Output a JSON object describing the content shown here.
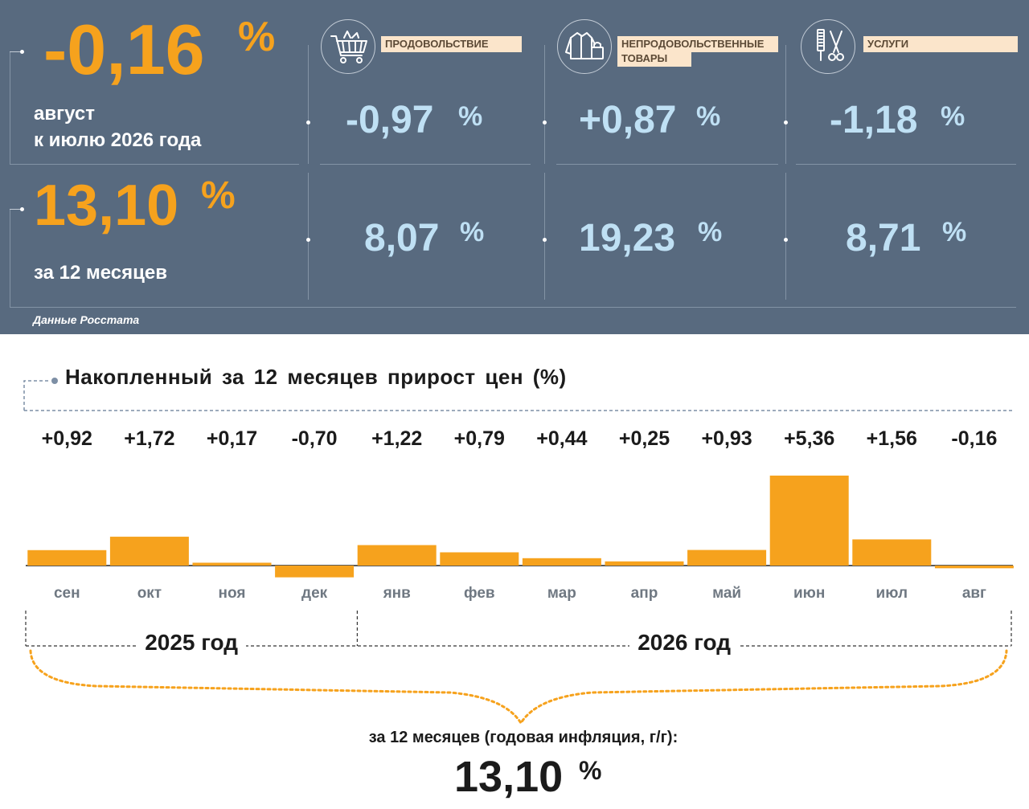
{
  "summary": {
    "monthly_value": "-0,16",
    "monthly_unit": "%",
    "monthly_caption_line1": "август",
    "monthly_caption_line2": "к июлю 2026 года",
    "annual_value": "13,10",
    "annual_unit": "%",
    "annual_caption": "за 12 месяцев"
  },
  "categories": [
    {
      "icon": "shopping-cart-icon",
      "label_line1": "ПРОДОВОЛЬСТВИЕ",
      "label_line2": "",
      "monthly": "-0,97",
      "annual": "8,07",
      "unit": "%"
    },
    {
      "icon": "clothes-icon",
      "label_line1": "НЕПРОДОВОЛЬСТВЕННЫЕ",
      "label_line2": "ТОВАРЫ",
      "monthly": "+0,87",
      "annual": "19,23",
      "unit": "%"
    },
    {
      "icon": "scissors-icon",
      "label_line1": "УСЛУГИ",
      "label_line2": "",
      "monthly": "-1,18",
      "annual": "8,71",
      "unit": "%"
    }
  ],
  "source_note": "Данные Росстата",
  "colors": {
    "panel": "#586a7f",
    "accent": "#f6a21d",
    "light_blue": "#bfe0f4",
    "label_bg": "#fbe5cb"
  },
  "chart_data": {
    "type": "bar",
    "title": "Накопленный за 12 месяцев прирост цен (%)",
    "categories": [
      "сен",
      "окт",
      "ноя",
      "дек",
      "янв",
      "фев",
      "мар",
      "апр",
      "май",
      "июн",
      "июл",
      "авг"
    ],
    "values": [
      0.92,
      1.72,
      0.17,
      -0.7,
      1.22,
      0.79,
      0.44,
      0.25,
      0.93,
      5.36,
      1.56,
      -0.16
    ],
    "value_labels": [
      "+0,92",
      "+1,72",
      "+0,17",
      "-0,70",
      "+1,22",
      "+0,79",
      "+0,44",
      "+0,25",
      "+0,93",
      "+5,36",
      "+1,56",
      "-0,16"
    ],
    "groups": [
      {
        "label": "2025 год",
        "count": 4
      },
      {
        "label": "2026 год",
        "count": 8
      }
    ],
    "bar_color": "#f6a21d",
    "grid": false,
    "legend": "none",
    "annual_caption": "за 12 месяцев (годовая инфляция, г/г):",
    "annual_value": "13,10",
    "annual_unit": "%"
  }
}
